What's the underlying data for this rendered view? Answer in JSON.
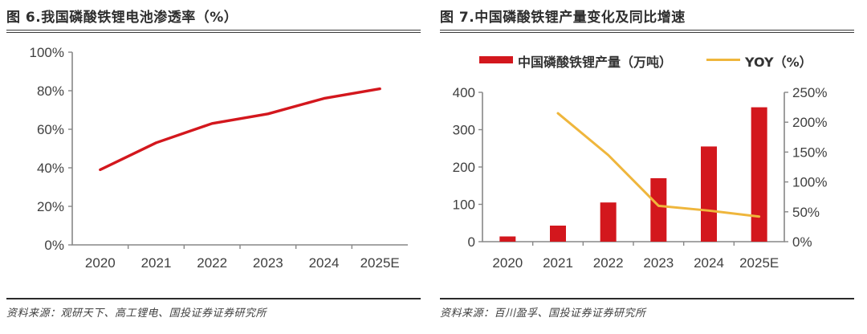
{
  "colors": {
    "series_red": "#D3171D",
    "series_yellow": "#EFB63C",
    "axis_line": "#878787",
    "tick_text": "#3f3f3f",
    "title_text": "#2e2e2e",
    "rule": "#3b3b3b"
  },
  "figures": {
    "fig6": {
      "title": "图 6.我国磷酸铁锂电池渗透率（%）",
      "source": "资料来源：观研天下、高工锂电、国投证券证券研究所"
    },
    "fig7": {
      "title": "图 7.中国磷酸铁锂产量变化及同比增速",
      "source": "资料来源：百川盈孚、国投证券证券研究所"
    }
  },
  "chart_data": [
    {
      "id": "fig6",
      "type": "line",
      "title": "图 6.我国磷酸铁锂电池渗透率（%）",
      "categories": [
        "2020",
        "2021",
        "2022",
        "2023",
        "2024",
        "2025E"
      ],
      "series": [
        {
          "name": "我国磷酸铁锂电池渗透率",
          "values": [
            39,
            53,
            63,
            68,
            76,
            81
          ]
        }
      ],
      "unit": "%",
      "ylim": [
        0,
        100
      ],
      "ytick_step": 20,
      "yticks": [
        "0%",
        "20%",
        "40%",
        "60%",
        "80%",
        "100%"
      ],
      "grid": false,
      "legend_position": "none",
      "line_color": "#D3171D"
    },
    {
      "id": "fig7",
      "type": "bar+line",
      "title": "图 7.中国磷酸铁锂产量变化及同比增速",
      "categories": [
        "2020",
        "2021",
        "2022",
        "2023",
        "2024",
        "2025E"
      ],
      "series": [
        {
          "name": "中国磷酸铁锂产量（万吨）",
          "chart": "bar",
          "axis": "left",
          "color": "#D3171D",
          "values": [
            14,
            43,
            105,
            170,
            255,
            360
          ]
        },
        {
          "name": "YOY（%）",
          "chart": "line",
          "axis": "right",
          "color": "#EFB63C",
          "values": [
            null,
            215,
            145,
            60,
            52,
            42
          ]
        }
      ],
      "left_axis": {
        "lim": [
          0,
          400
        ],
        "tick_step": 100,
        "ticks": [
          "0",
          "100",
          "200",
          "300",
          "400"
        ]
      },
      "right_axis": {
        "lim": [
          0,
          250
        ],
        "tick_step": 50,
        "unit": "%",
        "ticks": [
          "0%",
          "50%",
          "100%",
          "150%",
          "200%",
          "250%"
        ]
      },
      "grid": false,
      "legend_position": "top"
    }
  ]
}
